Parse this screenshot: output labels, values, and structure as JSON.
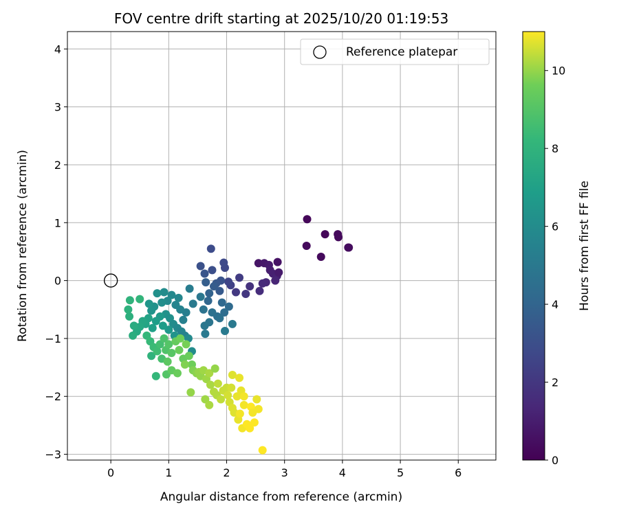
{
  "chart_data": {
    "type": "scatter",
    "title": "FOV centre drift starting at 2025/10/20 01:19:53",
    "xlabel": "Angular distance from reference (arcmin)",
    "ylabel": "Rotation from reference (arcmin)",
    "xlim": [
      -0.75,
      6.65
    ],
    "ylim": [
      -3.1,
      4.3
    ],
    "xticks": [
      0,
      1,
      2,
      3,
      4,
      5,
      6
    ],
    "yticks": [
      -3,
      -2,
      -1,
      0,
      1,
      2,
      3,
      4
    ],
    "grid": true,
    "legend": {
      "placement": "top-right",
      "entries": [
        "Reference platepar"
      ]
    },
    "reference_point": {
      "name": "Reference platepar",
      "x": 0,
      "y": 0,
      "marker": "hollow-circle"
    },
    "colorbar": {
      "label": "Hours from first FF file",
      "colormap": "viridis",
      "range": [
        0,
        11
      ],
      "ticks": [
        0,
        2,
        4,
        6,
        8,
        10
      ]
    },
    "points": [
      {
        "x": 3.39,
        "y": 1.06,
        "t": 0.2
      },
      {
        "x": 3.7,
        "y": 0.8,
        "t": 0.2
      },
      {
        "x": 3.92,
        "y": 0.8,
        "t": 0.3
      },
      {
        "x": 3.93,
        "y": 0.75,
        "t": 0.3
      },
      {
        "x": 4.1,
        "y": 0.57,
        "t": 0.4
      },
      {
        "x": 4.11,
        "y": 0.57,
        "t": 0.4
      },
      {
        "x": 3.38,
        "y": 0.6,
        "t": 0.3
      },
      {
        "x": 3.63,
        "y": 0.41,
        "t": 0.3
      },
      {
        "x": 2.55,
        "y": 0.3,
        "t": 0.7
      },
      {
        "x": 2.65,
        "y": 0.3,
        "t": 0.8
      },
      {
        "x": 2.73,
        "y": 0.27,
        "t": 0.9
      },
      {
        "x": 2.88,
        "y": 0.32,
        "t": 0.6
      },
      {
        "x": 2.75,
        "y": 0.18,
        "t": 1.0
      },
      {
        "x": 2.8,
        "y": 0.12,
        "t": 1.1
      },
      {
        "x": 2.87,
        "y": 0.08,
        "t": 1.2
      },
      {
        "x": 2.9,
        "y": 0.14,
        "t": 0.9
      },
      {
        "x": 2.84,
        "y": 0.0,
        "t": 1.3
      },
      {
        "x": 2.68,
        "y": -0.03,
        "t": 1.4
      },
      {
        "x": 2.62,
        "y": -0.05,
        "t": 1.5
      },
      {
        "x": 2.57,
        "y": -0.18,
        "t": 1.6
      },
      {
        "x": 2.4,
        "y": -0.1,
        "t": 1.8
      },
      {
        "x": 2.33,
        "y": -0.23,
        "t": 2.0
      },
      {
        "x": 2.16,
        "y": -0.2,
        "t": 2.1
      },
      {
        "x": 2.22,
        "y": 0.05,
        "t": 2.2
      },
      {
        "x": 2.07,
        "y": -0.08,
        "t": 2.4
      },
      {
        "x": 2.03,
        "y": -0.02,
        "t": 2.6
      },
      {
        "x": 1.97,
        "y": 0.22,
        "t": 2.7
      },
      {
        "x": 1.95,
        "y": 0.31,
        "t": 2.8
      },
      {
        "x": 1.73,
        "y": 0.55,
        "t": 2.9
      },
      {
        "x": 1.75,
        "y": 0.18,
        "t": 3.0
      },
      {
        "x": 1.55,
        "y": 0.25,
        "t": 3.1
      },
      {
        "x": 1.62,
        "y": 0.12,
        "t": 3.3
      },
      {
        "x": 1.9,
        "y": 0.0,
        "t": 3.2
      },
      {
        "x": 1.82,
        "y": -0.05,
        "t": 3.4
      },
      {
        "x": 1.88,
        "y": -0.18,
        "t": 3.5
      },
      {
        "x": 1.78,
        "y": -0.1,
        "t": 3.6
      },
      {
        "x": 1.64,
        "y": -0.03,
        "t": 3.7
      },
      {
        "x": 1.7,
        "y": -0.22,
        "t": 3.9
      },
      {
        "x": 1.68,
        "y": -0.35,
        "t": 4.1
      },
      {
        "x": 1.92,
        "y": -0.38,
        "t": 4.2
      },
      {
        "x": 2.04,
        "y": -0.45,
        "t": 4.3
      },
      {
        "x": 1.96,
        "y": -0.55,
        "t": 4.4
      },
      {
        "x": 1.84,
        "y": -0.62,
        "t": 4.5
      },
      {
        "x": 1.75,
        "y": -0.55,
        "t": 4.6
      },
      {
        "x": 1.6,
        "y": -0.5,
        "t": 4.7
      },
      {
        "x": 1.7,
        "y": -0.72,
        "t": 4.8
      },
      {
        "x": 1.62,
        "y": -0.78,
        "t": 4.9
      },
      {
        "x": 1.63,
        "y": -0.92,
        "t": 5.0
      },
      {
        "x": 1.97,
        "y": -0.87,
        "t": 5.1
      },
      {
        "x": 2.1,
        "y": -0.75,
        "t": 5.0
      },
      {
        "x": 1.88,
        "y": -0.65,
        "t": 4.6
      },
      {
        "x": 1.55,
        "y": -0.28,
        "t": 4.9
      },
      {
        "x": 1.42,
        "y": -0.4,
        "t": 5.1
      },
      {
        "x": 1.36,
        "y": -0.14,
        "t": 5.2
      },
      {
        "x": 1.3,
        "y": -0.55,
        "t": 5.3
      },
      {
        "x": 1.25,
        "y": -0.68,
        "t": 5.4
      },
      {
        "x": 1.2,
        "y": -0.5,
        "t": 5.5
      },
      {
        "x": 1.12,
        "y": -0.42,
        "t": 5.6
      },
      {
        "x": 1.17,
        "y": -0.3,
        "t": 5.7
      },
      {
        "x": 1.05,
        "y": -0.25,
        "t": 5.8
      },
      {
        "x": 0.98,
        "y": -0.35,
        "t": 5.9
      },
      {
        "x": 0.92,
        "y": -0.2,
        "t": 6.0
      },
      {
        "x": 0.88,
        "y": -0.38,
        "t": 6.1
      },
      {
        "x": 0.8,
        "y": -0.22,
        "t": 6.2
      },
      {
        "x": 0.75,
        "y": -0.45,
        "t": 6.3
      },
      {
        "x": 0.7,
        "y": -0.52,
        "t": 6.4
      },
      {
        "x": 0.66,
        "y": -0.4,
        "t": 6.5
      },
      {
        "x": 0.95,
        "y": -0.58,
        "t": 6.3
      },
      {
        "x": 1.02,
        "y": -0.65,
        "t": 6.2
      },
      {
        "x": 1.08,
        "y": -0.75,
        "t": 6.0
      },
      {
        "x": 1.15,
        "y": -0.82,
        "t": 5.8
      },
      {
        "x": 1.22,
        "y": -0.88,
        "t": 5.6
      },
      {
        "x": 1.28,
        "y": -0.95,
        "t": 5.5
      },
      {
        "x": 1.34,
        "y": -1.0,
        "t": 5.9
      },
      {
        "x": 1.4,
        "y": -1.22,
        "t": 6.0
      },
      {
        "x": 1.1,
        "y": -0.95,
        "t": 6.4
      },
      {
        "x": 1.0,
        "y": -0.85,
        "t": 6.6
      },
      {
        "x": 0.9,
        "y": -0.78,
        "t": 6.8
      },
      {
        "x": 0.85,
        "y": -0.62,
        "t": 6.7
      },
      {
        "x": 0.78,
        "y": -0.7,
        "t": 6.9
      },
      {
        "x": 0.72,
        "y": -0.82,
        "t": 7.0
      },
      {
        "x": 0.65,
        "y": -0.65,
        "t": 7.1
      },
      {
        "x": 0.6,
        "y": -0.75,
        "t": 7.2
      },
      {
        "x": 0.55,
        "y": -0.7,
        "t": 7.3
      },
      {
        "x": 0.5,
        "y": -0.8,
        "t": 7.4
      },
      {
        "x": 0.45,
        "y": -0.88,
        "t": 7.5
      },
      {
        "x": 0.4,
        "y": -0.78,
        "t": 7.6
      },
      {
        "x": 0.38,
        "y": -0.95,
        "t": 7.7
      },
      {
        "x": 0.32,
        "y": -0.62,
        "t": 7.8
      },
      {
        "x": 0.3,
        "y": -0.5,
        "t": 7.9
      },
      {
        "x": 0.33,
        "y": -0.34,
        "t": 8.0
      },
      {
        "x": 0.5,
        "y": -0.32,
        "t": 8.1
      },
      {
        "x": 0.62,
        "y": -0.95,
        "t": 8.2
      },
      {
        "x": 0.68,
        "y": -1.05,
        "t": 8.3
      },
      {
        "x": 0.74,
        "y": -1.15,
        "t": 8.4
      },
      {
        "x": 0.7,
        "y": -1.3,
        "t": 8.0
      },
      {
        "x": 0.8,
        "y": -1.22,
        "t": 8.5
      },
      {
        "x": 0.85,
        "y": -1.1,
        "t": 8.6
      },
      {
        "x": 0.88,
        "y": -1.35,
        "t": 8.7
      },
      {
        "x": 0.78,
        "y": -1.65,
        "t": 8.2
      },
      {
        "x": 0.92,
        "y": -1.0,
        "t": 8.8
      },
      {
        "x": 0.95,
        "y": -1.2,
        "t": 8.9
      },
      {
        "x": 1.0,
        "y": -1.1,
        "t": 9.0
      },
      {
        "x": 1.05,
        "y": -1.25,
        "t": 9.1
      },
      {
        "x": 0.98,
        "y": -1.4,
        "t": 9.2
      },
      {
        "x": 0.96,
        "y": -1.62,
        "t": 9.0
      },
      {
        "x": 1.05,
        "y": -1.55,
        "t": 9.3
      },
      {
        "x": 1.12,
        "y": -1.05,
        "t": 9.4
      },
      {
        "x": 1.18,
        "y": -1.2,
        "t": 9.5
      },
      {
        "x": 1.2,
        "y": -1.0,
        "t": 9.6
      },
      {
        "x": 1.25,
        "y": -1.35,
        "t": 9.4
      },
      {
        "x": 1.3,
        "y": -1.1,
        "t": 9.7
      },
      {
        "x": 1.35,
        "y": -1.3,
        "t": 9.5
      },
      {
        "x": 1.4,
        "y": -1.45,
        "t": 9.6
      },
      {
        "x": 1.15,
        "y": -1.6,
        "t": 9.5
      },
      {
        "x": 1.28,
        "y": -1.45,
        "t": 9.8
      },
      {
        "x": 1.42,
        "y": -1.55,
        "t": 9.8
      },
      {
        "x": 1.48,
        "y": -1.6,
        "t": 9.9
      },
      {
        "x": 1.52,
        "y": -1.58,
        "t": 10.0
      },
      {
        "x": 1.55,
        "y": -1.65,
        "t": 10.0
      },
      {
        "x": 1.6,
        "y": -1.55,
        "t": 10.1
      },
      {
        "x": 1.65,
        "y": -1.7,
        "t": 10.1
      },
      {
        "x": 1.7,
        "y": -1.6,
        "t": 10.2
      },
      {
        "x": 1.72,
        "y": -1.8,
        "t": 10.2
      },
      {
        "x": 1.8,
        "y": -1.52,
        "t": 10.0
      },
      {
        "x": 1.78,
        "y": -1.92,
        "t": 10.3
      },
      {
        "x": 1.83,
        "y": -1.98,
        "t": 10.3
      },
      {
        "x": 1.85,
        "y": -1.78,
        "t": 10.4
      },
      {
        "x": 1.9,
        "y": -2.05,
        "t": 10.4
      },
      {
        "x": 1.94,
        "y": -1.9,
        "t": 10.5
      },
      {
        "x": 2.0,
        "y": -1.85,
        "t": 10.5
      },
      {
        "x": 2.02,
        "y": -1.98,
        "t": 10.6
      },
      {
        "x": 2.05,
        "y": -2.1,
        "t": 10.6
      },
      {
        "x": 2.1,
        "y": -2.2,
        "t": 10.7
      },
      {
        "x": 2.13,
        "y": -2.28,
        "t": 10.7
      },
      {
        "x": 2.18,
        "y": -2.0,
        "t": 10.8
      },
      {
        "x": 2.2,
        "y": -2.4,
        "t": 10.8
      },
      {
        "x": 2.23,
        "y": -2.3,
        "t": 10.9
      },
      {
        "x": 2.25,
        "y": -1.9,
        "t": 10.8
      },
      {
        "x": 2.27,
        "y": -2.55,
        "t": 10.9
      },
      {
        "x": 2.3,
        "y": -2.15,
        "t": 10.9
      },
      {
        "x": 2.35,
        "y": -2.48,
        "t": 11.0
      },
      {
        "x": 2.4,
        "y": -2.55,
        "t": 11.0
      },
      {
        "x": 2.42,
        "y": -2.18,
        "t": 11.0
      },
      {
        "x": 2.45,
        "y": -2.28,
        "t": 10.9
      },
      {
        "x": 2.48,
        "y": -2.45,
        "t": 11.0
      },
      {
        "x": 2.52,
        "y": -2.05,
        "t": 10.8
      },
      {
        "x": 2.55,
        "y": -2.22,
        "t": 10.9
      },
      {
        "x": 2.62,
        "y": -2.93,
        "t": 11.0
      },
      {
        "x": 2.1,
        "y": -1.63,
        "t": 10.7
      },
      {
        "x": 2.22,
        "y": -1.68,
        "t": 10.8
      },
      {
        "x": 2.08,
        "y": -1.85,
        "t": 10.6
      },
      {
        "x": 1.38,
        "y": -1.93,
        "t": 10.0
      },
      {
        "x": 1.63,
        "y": -2.05,
        "t": 10.1
      },
      {
        "x": 1.7,
        "y": -2.15,
        "t": 10.2
      },
      {
        "x": 2.3,
        "y": -2.0,
        "t": 10.9
      }
    ]
  }
}
